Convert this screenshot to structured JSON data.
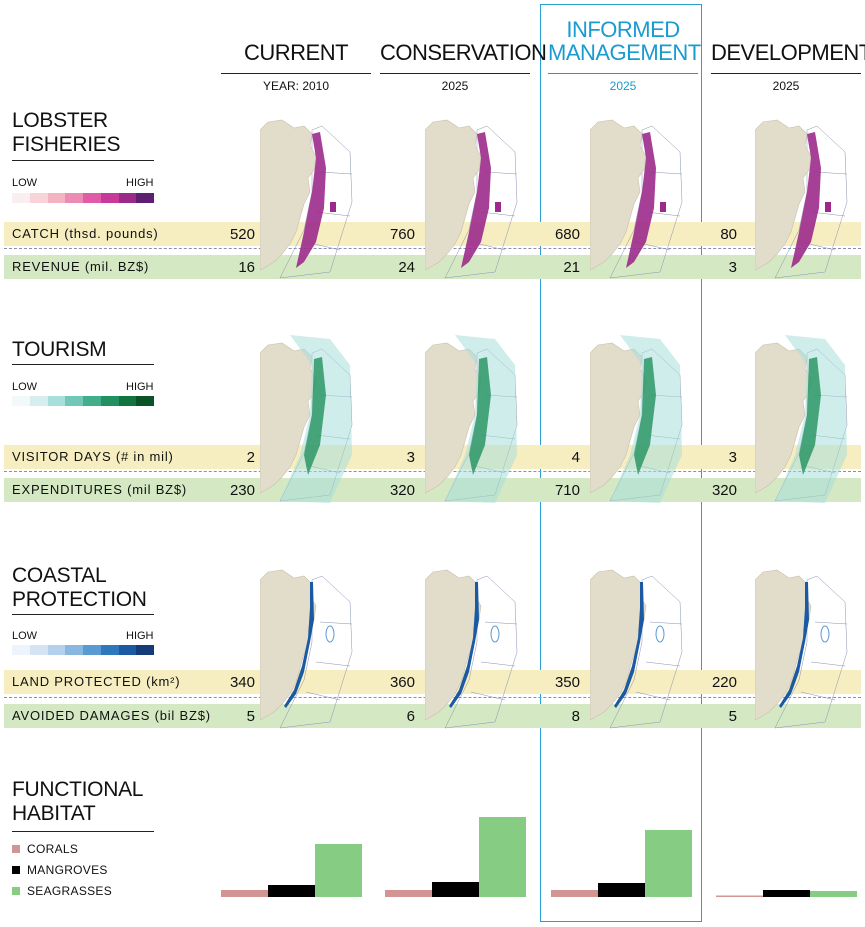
{
  "columns": [
    {
      "title": "CURRENT",
      "year": "YEAR: 2010"
    },
    {
      "title": "CONSERVATION",
      "year": "2025"
    },
    {
      "title_line1": "INFORMED",
      "title": "MANAGEMENT",
      "year": "2025"
    },
    {
      "title": "DEVELOPMENT",
      "year": "2025"
    }
  ],
  "sections": {
    "lobster": {
      "title_line1": "LOBSTER",
      "title_line2": "FISHERIES",
      "legend_low": "LOW",
      "legend_high": "HIGH",
      "legend_colors": [
        "#fbeef0",
        "#f8d3d8",
        "#f3b3c0",
        "#ec8cb2",
        "#e05ca6",
        "#c83a9a",
        "#9c2a8b",
        "#5e1f73"
      ],
      "row1_label": "CATCH (thsd. pounds)",
      "row2_label": "REVENUE (mil. BZ$)",
      "row1_values": [
        "520",
        "760",
        "680",
        "80"
      ],
      "row2_values": [
        "16",
        "24",
        "21",
        "3"
      ]
    },
    "tourism": {
      "title_line1": "TOURISM",
      "legend_low": "LOW",
      "legend_high": "HIGH",
      "legend_colors": [
        "#f2faf9",
        "#d6efee",
        "#a8dedb",
        "#72c8b6",
        "#43ae8c",
        "#23915f",
        "#12743e",
        "#0b5228"
      ],
      "row1_label": "VISITOR DAYS (# in mil)",
      "row2_label": "EXPENDITURES (mil BZ$)",
      "row1_values": [
        "2",
        "3",
        "4",
        "3"
      ],
      "row2_values": [
        "230",
        "320",
        "710",
        "320"
      ]
    },
    "coastal": {
      "title_line1": "COASTAL",
      "title_line2": "PROTECTION",
      "legend_low": "LOW",
      "legend_high": "HIGH",
      "legend_colors": [
        "#eef4fb",
        "#d4e4f4",
        "#b3d0ec",
        "#88b8e0",
        "#5a9ad2",
        "#2f77bd",
        "#1b5aa2",
        "#133c79"
      ],
      "row1_label": "LAND PROTECTED (km²)",
      "row2_label": "AVOIDED DAMAGES (bil BZ$)",
      "row1_values": [
        "340",
        "360",
        "350",
        "220"
      ],
      "row2_values": [
        "5",
        "6",
        "8",
        "5"
      ]
    },
    "habitat": {
      "title_line1": "FUNCTIONAL",
      "title_line2": "HABITAT",
      "legend": [
        {
          "name": "CORALS",
          "color": "#d39494"
        },
        {
          "name": "MANGROVES",
          "color": "#000000"
        },
        {
          "name": "SEAGRASSES",
          "color": "#86cc82"
        }
      ]
    }
  },
  "chart_data": {
    "type": "bar",
    "categories": [
      "CURRENT",
      "CONSERVATION",
      "INFORMED MANAGEMENT",
      "DEVELOPMENT"
    ],
    "series": [
      {
        "name": "CORALS",
        "values": [
          7,
          7,
          7,
          1
        ]
      },
      {
        "name": "MANGROVES",
        "values": [
          12,
          15,
          14,
          7
        ]
      },
      {
        "name": "SEAGRASSES",
        "values": [
          53,
          80,
          67,
          6
        ]
      }
    ],
    "ylim": [
      0,
      85
    ]
  }
}
